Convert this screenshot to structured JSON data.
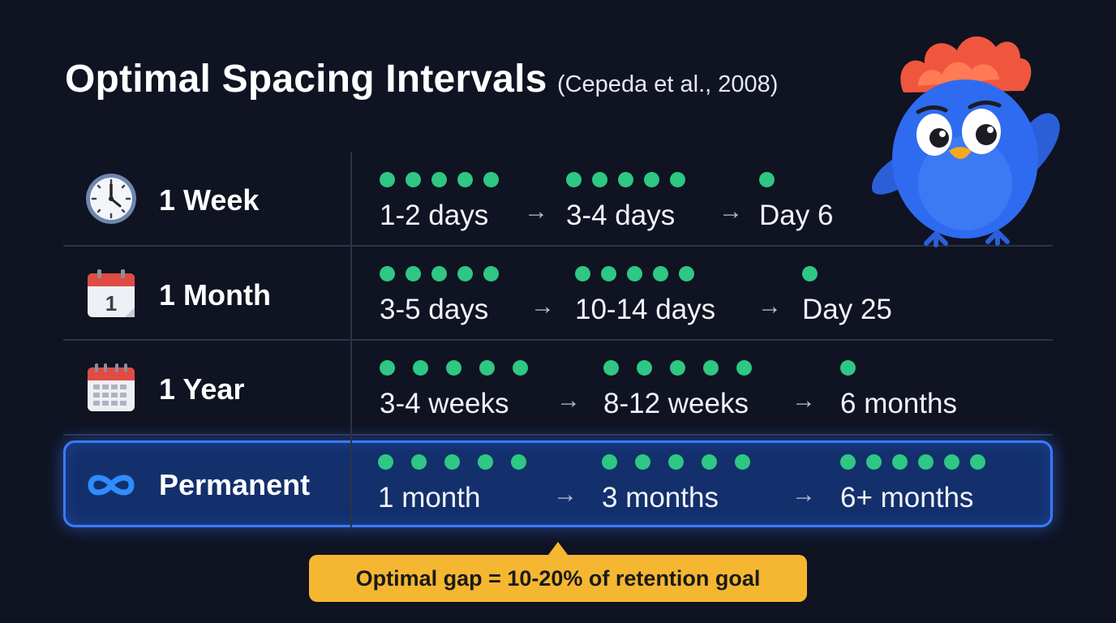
{
  "title": {
    "main": "Optimal Spacing Intervals",
    "citation": "(Cepeda et al., 2008)"
  },
  "rows": [
    {
      "label": "1 Week",
      "icon": "clock-icon",
      "steps": [
        {
          "text": "1-2 days",
          "dots": 5
        },
        {
          "text": "3-4 days",
          "dots": 5
        },
        {
          "text": "Day 6",
          "dots": 1
        }
      ]
    },
    {
      "label": "1 Month",
      "icon": "calendar-day-icon",
      "calendar_day": "1",
      "steps": [
        {
          "text": "3-5 days",
          "dots": 5
        },
        {
          "text": "10-14 days",
          "dots": 5
        },
        {
          "text": "Day 25",
          "dots": 1
        }
      ]
    },
    {
      "label": "1 Year",
      "icon": "calendar-grid-icon",
      "steps": [
        {
          "text": "3-4 weeks",
          "dots": 5
        },
        {
          "text": "8-12 weeks",
          "dots": 5
        },
        {
          "text": "6 months",
          "dots": 1
        }
      ]
    },
    {
      "label": "Permanent",
      "icon": "infinity-icon",
      "highlighted": true,
      "steps": [
        {
          "text": "1 month",
          "dots": 5
        },
        {
          "text": "3 months",
          "dots": 5
        },
        {
          "text": "6+ months",
          "dots": 6
        }
      ]
    }
  ],
  "arrow_symbol": "→",
  "callout": "Optimal gap = 10-20% of retention goal",
  "colors": {
    "background": "#0f1322",
    "dot": "#2ec783",
    "highlight_border": "#3a7bff",
    "highlight_fill": "#13306c",
    "callout": "#f5b731",
    "mascot_body": "#2f6bf0",
    "mascot_crest": "#f0563e"
  },
  "mascot": "blue-bird-mascot-icon"
}
